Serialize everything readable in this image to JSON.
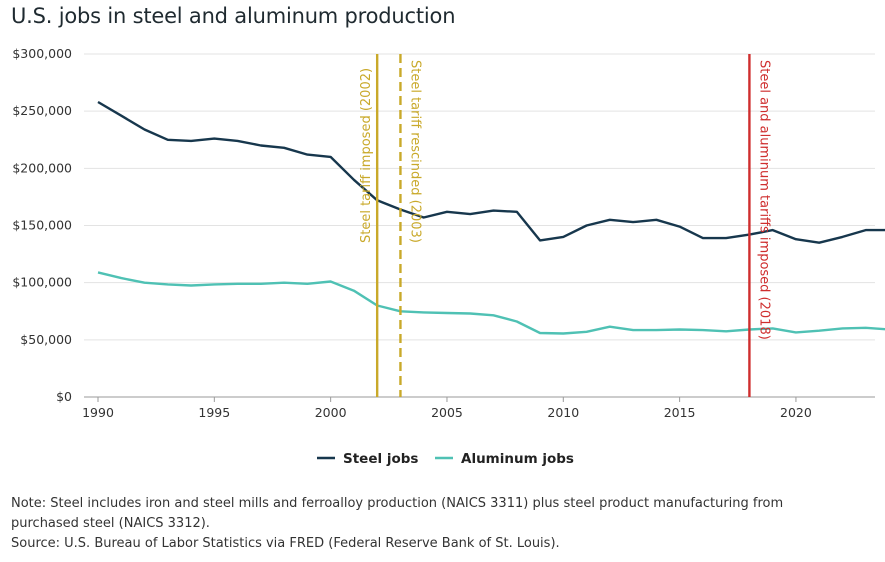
{
  "title": "U.S. jobs in steel and aluminum production",
  "note": {
    "line1": "Note: Steel includes iron and steel mills and ferroalloy production (NAICS 3311) plus steel product manufacturing from",
    "line2": "purchased steel (NAICS 3312).",
    "line3": "Source: U.S. Bureau of Labor Statistics via FRED (Federal Reserve Bank of St. Louis)."
  },
  "chart_data": {
    "type": "line",
    "title": "U.S. jobs in steel and aluminum production",
    "xlabel": "",
    "ylabel": "",
    "xlim": [
      1990,
      2024
    ],
    "ylim": [
      0,
      300000
    ],
    "x_ticks": [
      1990,
      1995,
      2000,
      2005,
      2010,
      2015,
      2020
    ],
    "y_ticks": [
      0,
      50000,
      100000,
      150000,
      200000,
      250000,
      300000
    ],
    "y_tick_labels": [
      "$0",
      "$50,000",
      "$100,000",
      "$150,000",
      "$200,000",
      "$250,000",
      "$300,000"
    ],
    "grid": true,
    "legend_position": "bottom-center",
    "x": [
      1990,
      1991,
      1992,
      1993,
      1994,
      1995,
      1996,
      1997,
      1998,
      1999,
      2000,
      2001,
      2002,
      2003,
      2004,
      2005,
      2006,
      2007,
      2008,
      2009,
      2010,
      2011,
      2012,
      2013,
      2014,
      2015,
      2016,
      2017,
      2018,
      2019,
      2020,
      2021,
      2022,
      2023,
      2024
    ],
    "series": [
      {
        "name": "Steel jobs",
        "color": "#17374d",
        "values": [
          258000,
          246000,
          234000,
          225000,
          224000,
          226000,
          224000,
          220000,
          218000,
          212000,
          210000,
          190000,
          172000,
          164000,
          157000,
          162000,
          160000,
          163000,
          162000,
          137000,
          140000,
          150000,
          155000,
          153000,
          155000,
          149000,
          139000,
          139000,
          142000,
          146000,
          138000,
          135000,
          140000,
          146000,
          146000
        ]
      },
      {
        "name": "Aluminum jobs",
        "color": "#4fc1b4",
        "values": [
          109000,
          104000,
          100000,
          98500,
          97500,
          98500,
          99000,
          99000,
          100000,
          99000,
          101000,
          93000,
          80000,
          75000,
          74000,
          73500,
          73000,
          71500,
          66000,
          56000,
          55500,
          57000,
          61500,
          58500,
          58500,
          59000,
          58500,
          57500,
          59000,
          60000,
          56500,
          58000,
          60000,
          60500,
          59000
        ]
      }
    ],
    "annotations": [
      {
        "year": 2002,
        "label": "Steel tariff imposed (2002)",
        "style": "solid",
        "color": "#c9a92a"
      },
      {
        "year": 2003,
        "label": "Steel tariff rescinded (2003)",
        "style": "dashed",
        "color": "#c9a92a"
      },
      {
        "year": 2018,
        "label": "Steel and aluminum tariffs imposed (2018)",
        "style": "solid",
        "color": "#cf2e2e"
      }
    ]
  }
}
